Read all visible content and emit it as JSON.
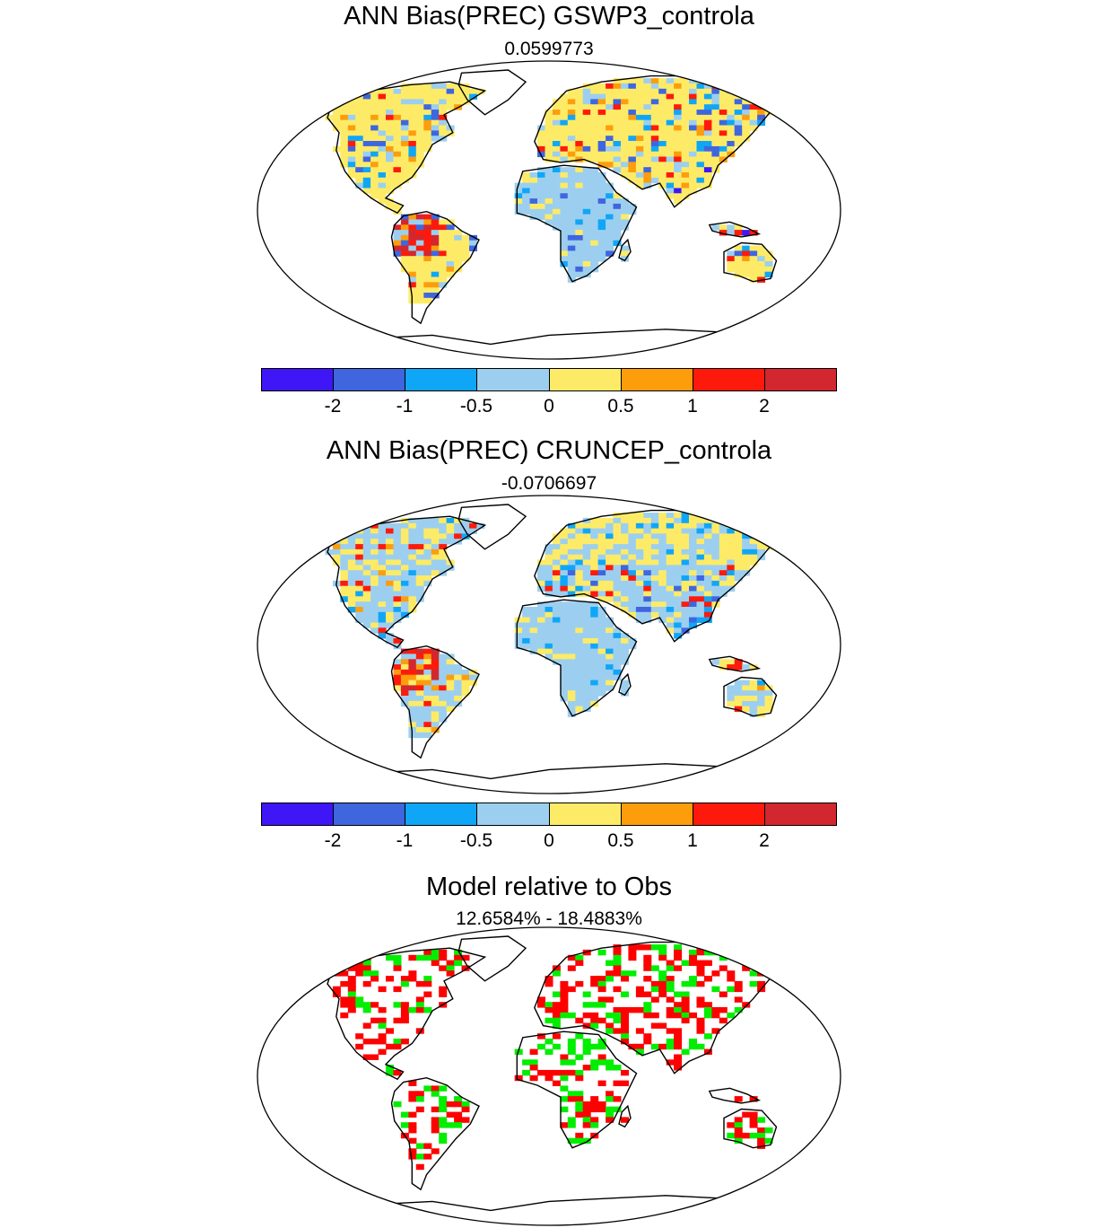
{
  "palette": {
    "c1": "#3f16f5",
    "c2": "#3f66df",
    "c3": "#10a6f7",
    "c4": "#9ccfef",
    "c5": "#fdeb67",
    "c6": "#fd9d0c",
    "c7": "#fd1a0c",
    "c8": "#d3272f",
    "worse": "#ff0000",
    "better": "#00ee00"
  },
  "panels": [
    {
      "title": "ANN Bias(PREC) GSWP3_controla",
      "subtitle": "0.0599773",
      "colorbar_ticks": [
        "-2",
        "-1",
        "-0.5",
        "0",
        "0.5",
        "1",
        "2"
      ]
    },
    {
      "title": "ANN Bias(PREC) CRUNCEP_controla",
      "subtitle": "-0.0706697",
      "colorbar_ticks": [
        "-2",
        "-1",
        "-0.5",
        "0",
        "0.5",
        "1",
        "2"
      ]
    },
    {
      "title": "Model relative to Obs",
      "subtitle": "12.6584% - 18.4883%"
    }
  ]
}
